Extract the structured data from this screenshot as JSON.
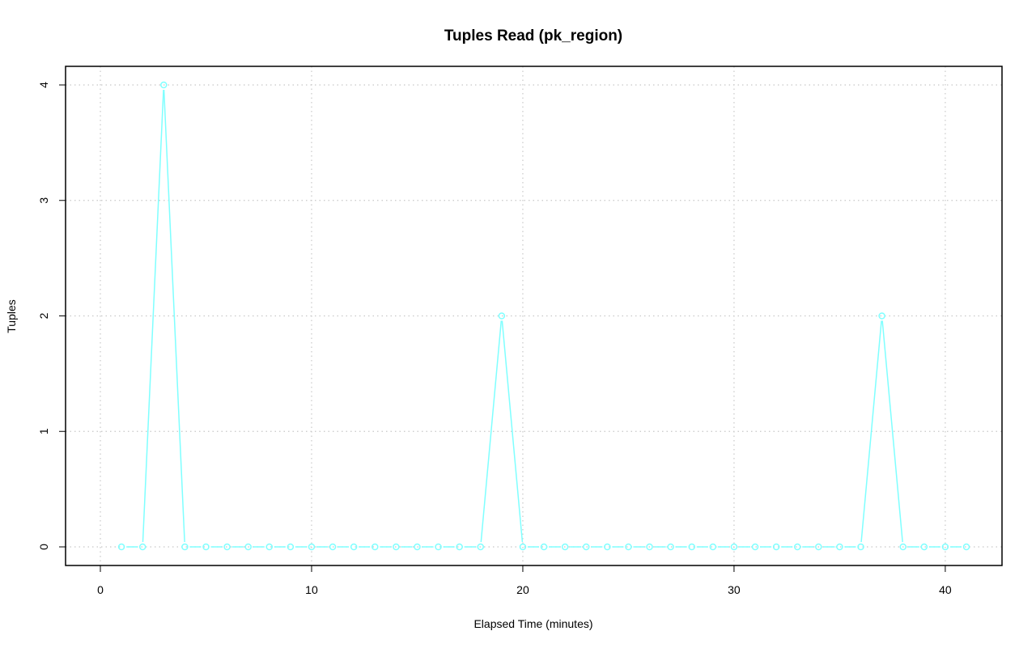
{
  "chart_data": {
    "type": "line",
    "title": "Tuples Read (pk_region)",
    "xlabel": "Elapsed Time (minutes)",
    "ylabel": "Tuples",
    "xlim": [
      0,
      41
    ],
    "ylim": [
      0,
      4
    ],
    "x_ticks": [
      0,
      10,
      20,
      30,
      40
    ],
    "y_ticks": [
      0,
      1,
      2,
      3,
      4
    ],
    "grid": true,
    "series": [
      {
        "color": "#7fffff",
        "marker": "open-circle",
        "x": [
          1,
          2,
          3,
          4,
          5,
          6,
          7,
          8,
          9,
          10,
          11,
          12,
          13,
          14,
          15,
          16,
          17,
          18,
          19,
          20,
          21,
          22,
          23,
          24,
          25,
          26,
          27,
          28,
          29,
          30,
          31,
          32,
          33,
          34,
          35,
          36,
          37,
          38,
          39,
          40,
          41
        ],
        "values": [
          0,
          0,
          4,
          0,
          0,
          0,
          0,
          0,
          0,
          0,
          0,
          0,
          0,
          0,
          0,
          0,
          0,
          0,
          2,
          0,
          0,
          0,
          0,
          0,
          0,
          0,
          0,
          0,
          0,
          0,
          0,
          0,
          0,
          0,
          0,
          0,
          2,
          0,
          0,
          0,
          0
        ]
      }
    ]
  }
}
